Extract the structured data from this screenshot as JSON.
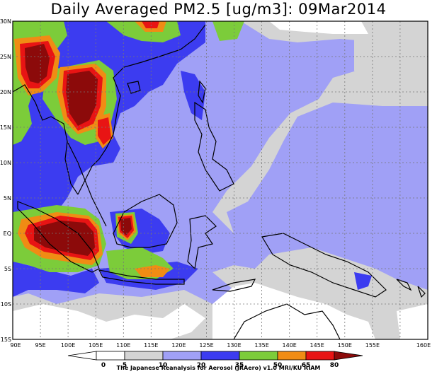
{
  "title": "Daily Averaged PM2.5 [ug/m3]: 09Mar2014",
  "credit": "The Japanese Reanalysis for Aerosol (JRAero) v1.0 MRI/KU RIAM",
  "lat_labels": [
    "30N",
    "25N",
    "20N",
    "15N",
    "10N",
    "5N",
    "EQ",
    "5S",
    "10S",
    "15S"
  ],
  "lon_labels": [
    "90E",
    "95E",
    "100E",
    "105E",
    "110E",
    "115E",
    "120E",
    "125E",
    "130E",
    "135E",
    "140E",
    "145E",
    "150E",
    "155E",
    "160E"
  ],
  "colorbar": {
    "ticks": [
      "0",
      "5",
      "10",
      "20",
      "35",
      "50",
      "65",
      "80"
    ],
    "bins": [
      {
        "range": "<0",
        "color": "#ffffff"
      },
      {
        "range": "0-5",
        "color": "#ffffff"
      },
      {
        "range": "5-10",
        "color": "#d4d4d4"
      },
      {
        "range": "10-20",
        "color": "#a0a0f6"
      },
      {
        "range": "20-35",
        "color": "#3c3cf0"
      },
      {
        "range": "35-50",
        "color": "#7ccc3a"
      },
      {
        "range": "50-65",
        "color": "#f08c14"
      },
      {
        "range": "65-80",
        "color": "#e81414"
      },
      {
        "range": ">80",
        "color": "#8c0a0a"
      }
    ]
  }
}
